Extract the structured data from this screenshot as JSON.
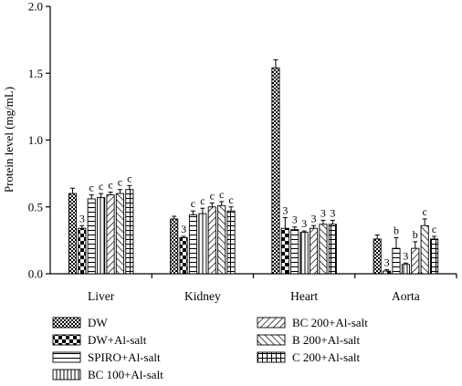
{
  "chart_data": {
    "type": "bar",
    "title": "",
    "xlabel": "",
    "ylabel": "Protein level (mg/mL)",
    "ylim": [
      0,
      2.0
    ],
    "yticks": [
      "0.0",
      "0.5",
      "1.0",
      "1.5",
      "2.0"
    ],
    "categories": [
      "Liver",
      "Kidney",
      "Heart",
      "Aorta"
    ],
    "grid": false,
    "legend_position": "bottom",
    "series": [
      {
        "name": "DW",
        "pattern": "checker-fine",
        "values": [
          0.6,
          0.41,
          1.54,
          0.26
        ],
        "errors": [
          0.04,
          0.02,
          0.06,
          0.03
        ],
        "labels": [
          "",
          "",
          "",
          ""
        ]
      },
      {
        "name": "DW+Al-salt",
        "pattern": "checker-large",
        "values": [
          0.34,
          0.27,
          0.34,
          0.02
        ],
        "errors": [
          0.02,
          0.01,
          0.08,
          0.01
        ],
        "labels": [
          "3",
          "3",
          "3",
          "3"
        ]
      },
      {
        "name": "SPIRO+Al-salt",
        "pattern": "horizontal",
        "values": [
          0.56,
          0.44,
          0.33,
          0.19
        ],
        "errors": [
          0.03,
          0.03,
          0.02,
          0.08
        ],
        "labels": [
          "c",
          "c",
          "3",
          "b"
        ]
      },
      {
        "name": "BC 100+Al-salt",
        "pattern": "vertical",
        "values": [
          0.57,
          0.45,
          0.31,
          0.07
        ],
        "errors": [
          0.03,
          0.04,
          0.01,
          0.01
        ],
        "labels": [
          "c",
          "c",
          "3",
          "3"
        ]
      },
      {
        "name": "BC 200+Al-salt",
        "pattern": "diag-up",
        "values": [
          0.59,
          0.5,
          0.34,
          0.19
        ],
        "errors": [
          0.02,
          0.03,
          0.02,
          0.05
        ],
        "labels": [
          "c",
          "c",
          "3",
          "b"
        ]
      },
      {
        "name": "B 200+Al-salt",
        "pattern": "diag-down",
        "values": [
          0.6,
          0.51,
          0.37,
          0.36
        ],
        "errors": [
          0.03,
          0.03,
          0.03,
          0.05
        ],
        "labels": [
          "c",
          "c",
          "3",
          "c"
        ]
      },
      {
        "name": "C 200+Al-salt",
        "pattern": "grid",
        "values": [
          0.63,
          0.47,
          0.37,
          0.26
        ],
        "errors": [
          0.03,
          0.03,
          0.03,
          0.02
        ],
        "labels": [
          "c",
          "c",
          "3",
          "c"
        ]
      }
    ]
  }
}
